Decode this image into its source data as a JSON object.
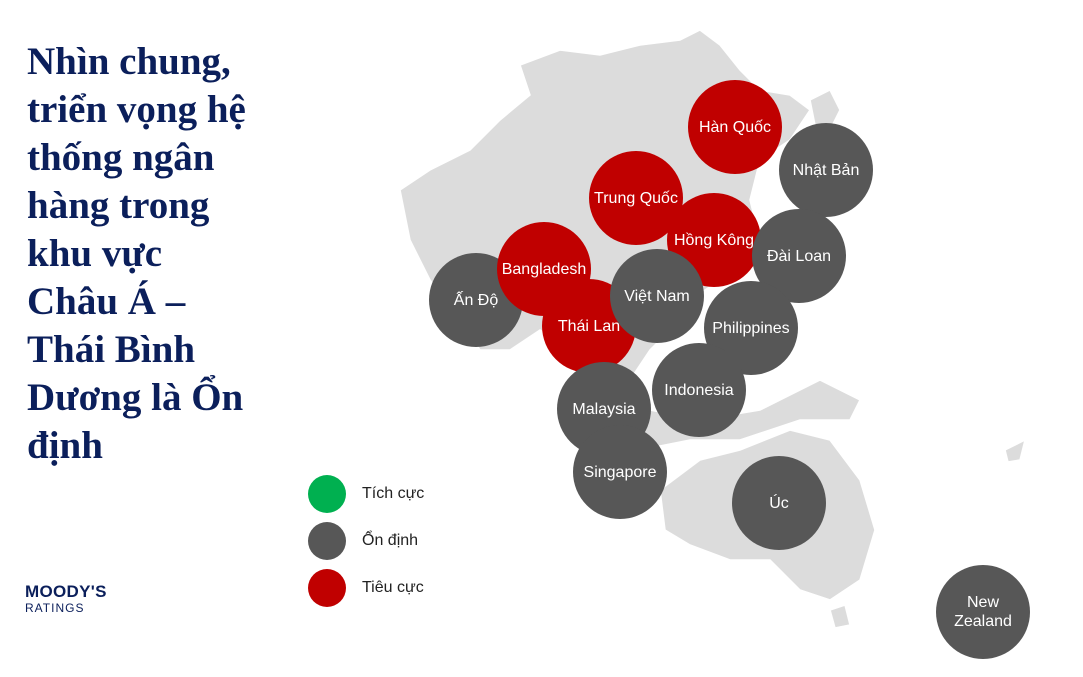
{
  "title": "Nhìn chung, triển vọng hệ thống ngân hàng trong khu vực Châu Á – Thái Bình Dương là Ổn định",
  "logo": {
    "name": "MOODY'S",
    "sub": "RATINGS"
  },
  "legend": [
    {
      "label": "Tích cực",
      "color": "#00b050"
    },
    {
      "label": "Ổn định",
      "color": "#575757"
    },
    {
      "label": "Tiêu cực",
      "color": "#c00000"
    }
  ],
  "markers": [
    {
      "label": "Ấn Độ",
      "color": "#575757"
    },
    {
      "label": "Trung Quốc",
      "color": "#c00000"
    },
    {
      "label": "Hồng Kông",
      "color": "#c00000"
    },
    {
      "label": "Bangladesh",
      "color": "#c00000"
    },
    {
      "label": "Thái Lan",
      "color": "#c00000"
    },
    {
      "label": "Việt Nam",
      "color": "#575757"
    },
    {
      "label": "Hàn Quốc",
      "color": "#c00000"
    },
    {
      "label": "Nhật Bản",
      "color": "#575757"
    },
    {
      "label": "Đài Loan",
      "color": "#575757"
    },
    {
      "label": "Philippines",
      "color": "#575757"
    },
    {
      "label": "Indonesia",
      "color": "#575757"
    },
    {
      "label": "Malaysia",
      "color": "#575757"
    },
    {
      "label": "Singapore",
      "color": "#575757"
    },
    {
      "label": "Úc",
      "color": "#575757"
    },
    {
      "label": "New Zealand",
      "color": "#575757"
    }
  ]
}
